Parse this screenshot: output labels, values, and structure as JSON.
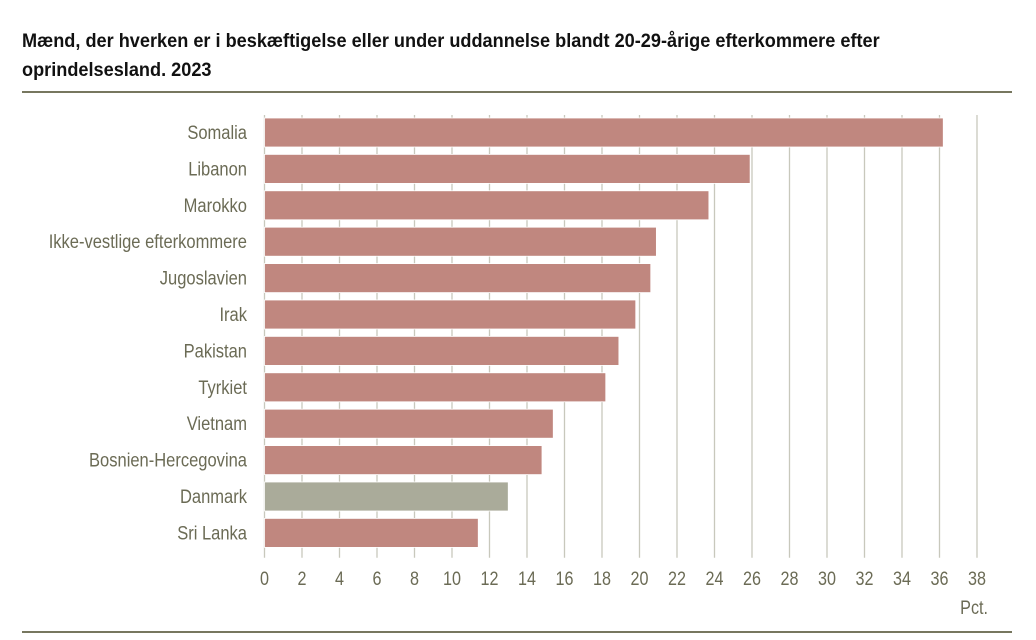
{
  "chart_data": {
    "type": "bar",
    "orientation": "horizontal",
    "title": "Mænd, der hverken er i beskæftigelse eller under uddannelse blandt 20-29-årige efterkommere efter oprindelsesland. 2023",
    "xlabel": "Pct.",
    "ylabel": "",
    "categories": [
      "Somalia",
      "Libanon",
      "Marokko",
      "Ikke-vestlige efterkommere",
      "Jugoslavien",
      "Irak",
      "Pakistan",
      "Tyrkiet",
      "Vietnam",
      "Bosnien-Hercegovina",
      "Danmark",
      "Sri Lanka"
    ],
    "values": [
      36.2,
      25.9,
      23.7,
      20.9,
      20.6,
      19.8,
      18.9,
      18.2,
      15.4,
      14.8,
      13.0,
      11.4
    ],
    "xlim": [
      0,
      38
    ],
    "xticks": [
      "0",
      "2",
      "4",
      "6",
      "8",
      "10",
      "12",
      "14",
      "16",
      "18",
      "20",
      "22",
      "24",
      "26",
      "28",
      "30",
      "32",
      "34",
      "36",
      "38"
    ],
    "grid": true,
    "colors": {
      "default": "#c0877f",
      "highlight": "#aaab9a",
      "highlight_category": "Danmark",
      "grid": "#c8c8bc",
      "text": "#6b6b55",
      "rule": "#77775f"
    }
  }
}
